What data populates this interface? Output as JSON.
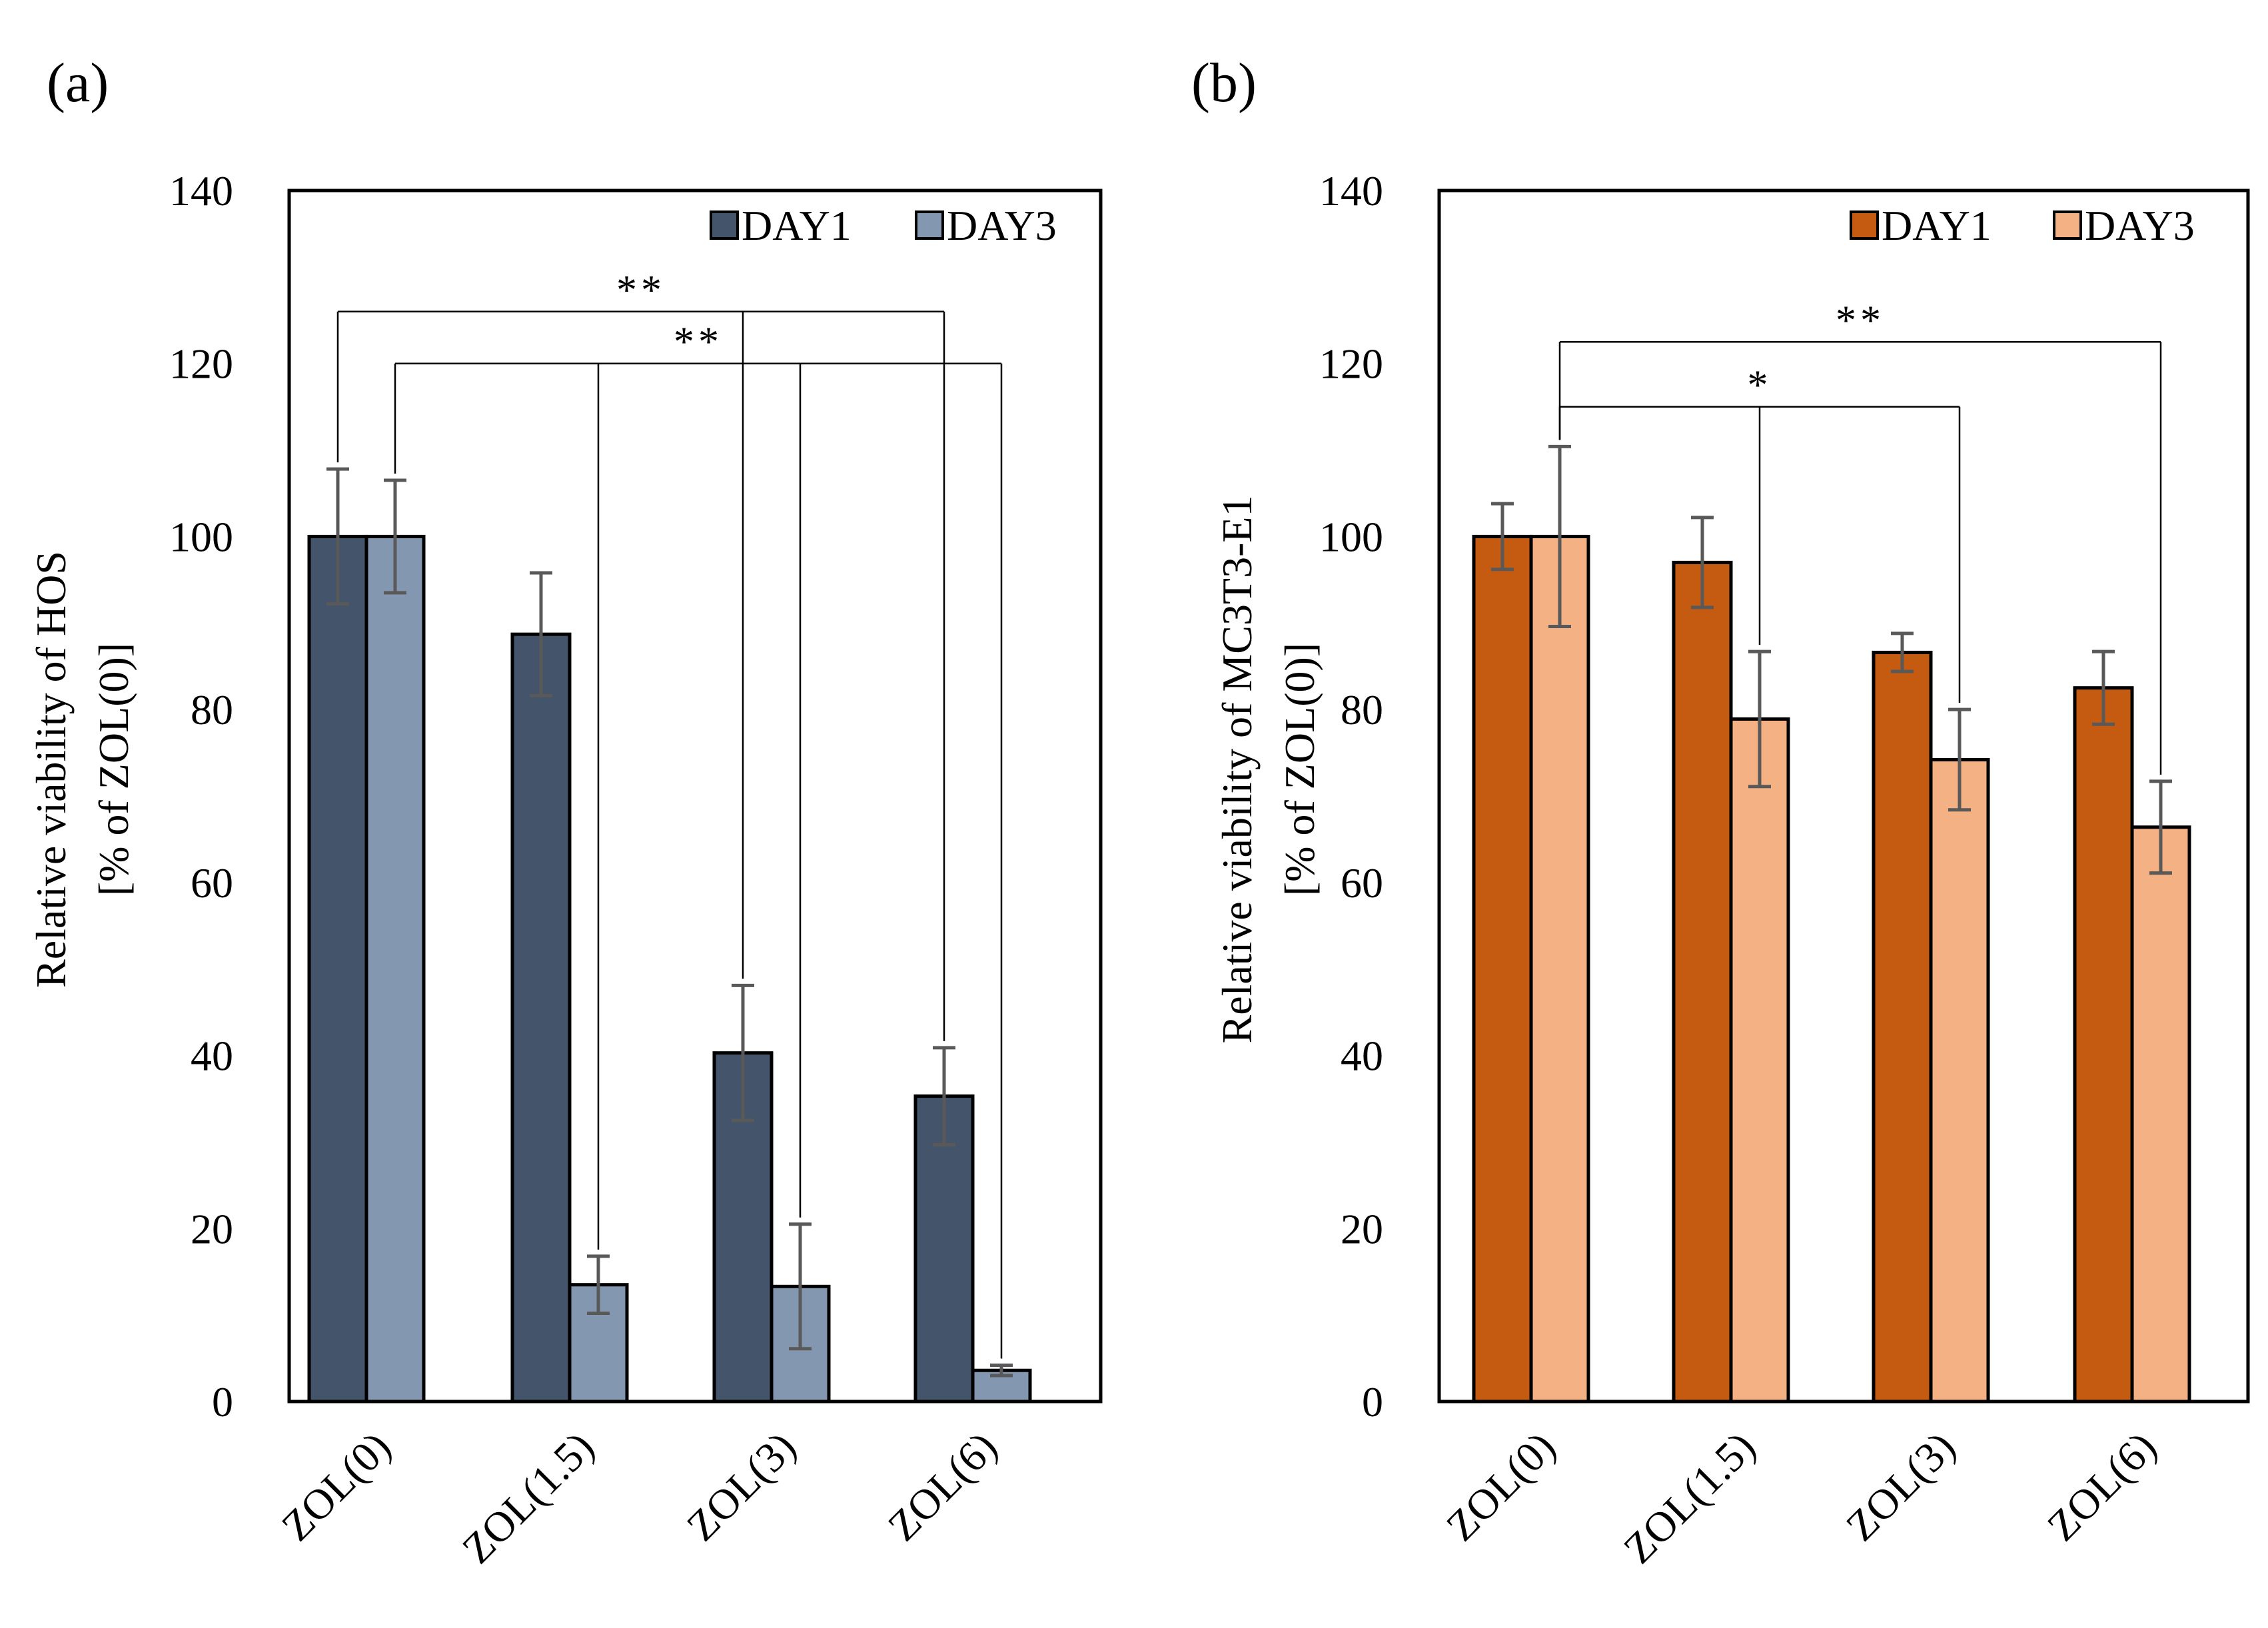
{
  "chart_data": [
    {
      "type": "bar",
      "panel_label": "(a)",
      "ylabel_line1": "Relative viability of HOS",
      "ylabel_line2": "[% of ZOL(0)]",
      "xlabel": "",
      "ylim": [
        0,
        140
      ],
      "yticks": [
        0,
        20,
        40,
        60,
        80,
        100,
        120,
        140
      ],
      "grid": false,
      "legend_position": "top-right",
      "categories": [
        "ZOL(0)",
        "ZOL(1.5)",
        "ZOL(3)",
        "ZOL(6)"
      ],
      "series": [
        {
          "name": "DAY1",
          "color": "#44546a",
          "values": [
            100,
            88.7,
            40.3,
            35.3
          ],
          "errors": [
            7.8,
            7.1,
            7.8,
            5.6
          ]
        },
        {
          "name": "DAY3",
          "color": "#8497b0",
          "values": [
            100,
            13.5,
            13.3,
            3.6
          ],
          "errors": [
            6.5,
            3.3,
            7.2,
            0.6
          ]
        }
      ],
      "significance": [
        {
          "label": "**",
          "y": 126,
          "from": [
            0,
            0
          ],
          "to": [
            [
              2,
              0
            ],
            [
              3,
              0
            ]
          ]
        },
        {
          "label": "**",
          "y": 120,
          "from": [
            0,
            1
          ],
          "to": [
            [
              1,
              1
            ],
            [
              2,
              1
            ],
            [
              3,
              1
            ]
          ]
        }
      ]
    },
    {
      "type": "bar",
      "panel_label": "(b)",
      "ylabel_line1": "Relative viability of MC3T3-E1",
      "ylabel_line2": "[% of ZOL(0)]",
      "xlabel": "",
      "ylim": [
        0,
        140
      ],
      "yticks": [
        0,
        20,
        40,
        60,
        80,
        100,
        120,
        140
      ],
      "grid": false,
      "legend_position": "top-right",
      "categories": [
        "ZOL(0)",
        "ZOL(1.5)",
        "ZOL(3)",
        "ZOL(6)"
      ],
      "series": [
        {
          "name": "DAY1",
          "color": "#c55a11",
          "values": [
            100,
            97,
            86.6,
            82.5
          ],
          "errors": [
            3.8,
            5.2,
            2.2,
            4.2
          ]
        },
        {
          "name": "DAY3",
          "color": "#f4b183",
          "values": [
            100,
            78.9,
            74.2,
            66.4
          ],
          "errors": [
            10.4,
            7.8,
            5.8,
            5.3
          ]
        }
      ],
      "significance": [
        {
          "label": "**",
          "y": 122.5,
          "from": [
            0,
            1
          ],
          "to": [
            [
              3,
              1
            ]
          ]
        },
        {
          "label": "*",
          "y": 115,
          "from": [
            0,
            1
          ],
          "to": [
            [
              1,
              1
            ],
            [
              2,
              1
            ]
          ]
        }
      ]
    }
  ]
}
